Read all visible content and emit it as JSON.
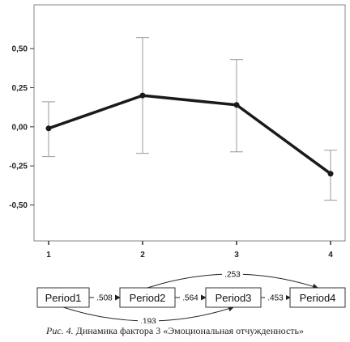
{
  "chart_data": {
    "type": "line",
    "categories": [
      "1",
      "2",
      "3",
      "4"
    ],
    "series": [
      {
        "values": [
          -0.01,
          0.2,
          0.14,
          -0.3
        ],
        "error_low": [
          -0.19,
          -0.17,
          -0.16,
          -0.47
        ],
        "error_high": [
          0.16,
          0.57,
          0.43,
          -0.15
        ]
      }
    ],
    "y_ticks": [
      "0,50",
      "0,25",
      "0,00",
      "-0,25",
      "-0,50"
    ],
    "y_tick_values": [
      0.5,
      0.25,
      0.0,
      -0.25,
      -0.5
    ],
    "ylim": [
      -0.73,
      0.78
    ],
    "grid": false,
    "line_color": "#1a1a1a",
    "errorbar_color": "#999999"
  },
  "path_diagram": {
    "nodes": [
      "Period1",
      "Period2",
      "Period3",
      "Period4"
    ],
    "edges": [
      {
        "from": 0,
        "to": 1,
        "label": ".508"
      },
      {
        "from": 1,
        "to": 2,
        "label": ".564"
      },
      {
        "from": 2,
        "to": 3,
        "label": ".453"
      },
      {
        "from": 1,
        "to": 3,
        "label": ".253"
      },
      {
        "from": 0,
        "to": 2,
        "label": ".193"
      }
    ]
  },
  "caption": {
    "label": "Рис. 4.",
    "text": " Динамика фактора 3 «Эмоциональная отчужденность»"
  }
}
